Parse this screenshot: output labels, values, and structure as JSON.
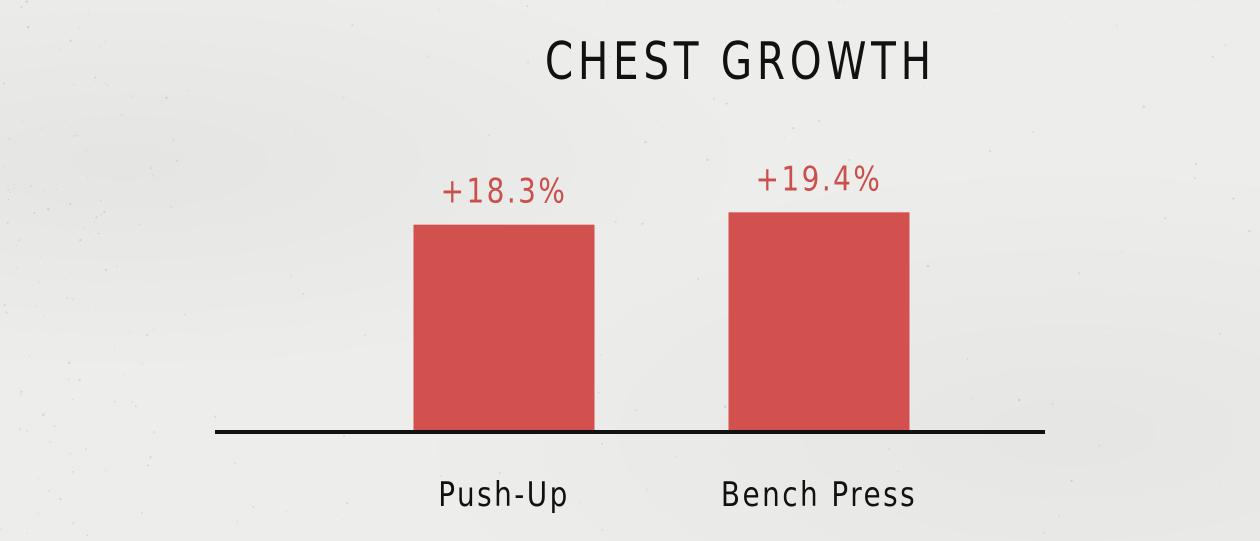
{
  "chart_data": {
    "type": "bar",
    "title": "CHEST GROWTH",
    "xlabel": "",
    "ylabel": "",
    "categories": [
      "Push-Up",
      "Bench Press"
    ],
    "values": [
      18.3,
      19.4
    ],
    "value_labels": [
      "+18.3%",
      "+19.4%"
    ],
    "ylim": [
      0,
      20.5
    ],
    "grid": false,
    "legend": "none",
    "colors": {
      "bar": "#d2504e",
      "value_label": "#c9504c",
      "axis": "#111111",
      "background": "#ededeb"
    }
  }
}
